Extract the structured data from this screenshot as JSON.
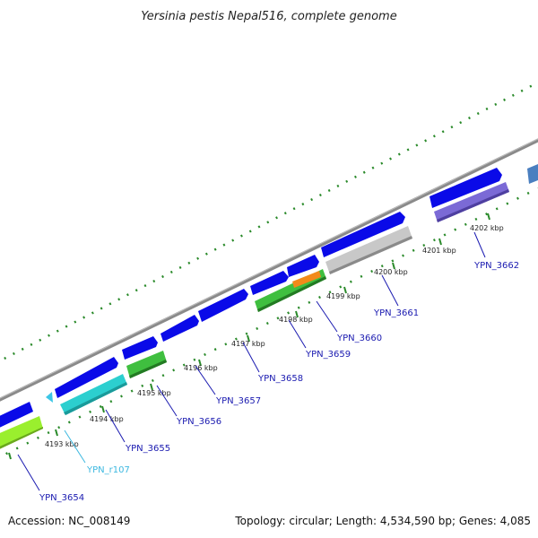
{
  "title": "Yersinia pestis Nepal516, complete genome",
  "footer": {
    "accession": "Accession: NC_008149",
    "topology": "Topology: circular; Length: 4,534,590 bp; Genes: 4,085"
  },
  "ticks": [
    {
      "label": "4193 kbp"
    },
    {
      "label": "4194 kbp"
    },
    {
      "label": "4195 kbp"
    },
    {
      "label": "4196 kbp"
    },
    {
      "label": "4197 kbp"
    },
    {
      "label": "4198 kbp"
    },
    {
      "label": "4199 kbp"
    },
    {
      "label": "4200 kbp"
    },
    {
      "label": "4201 kbp"
    },
    {
      "label": "4202 kbp"
    }
  ],
  "genes": [
    {
      "label": "YPN_3654",
      "color": "#9aef2e"
    },
    {
      "label": "YPN_r107",
      "color": "#3cc6e6"
    },
    {
      "label": "YPN_3655",
      "color": "#2ccfcf"
    },
    {
      "label": "YPN_3656",
      "color": "#3fbf3f"
    },
    {
      "label": "YPN_3657",
      "color": "#0a0ae8"
    },
    {
      "label": "YPN_3658",
      "color": "#0a0ae8"
    },
    {
      "label": "YPN_3659",
      "color": "#3fbf3f"
    },
    {
      "label": "YPN_3660",
      "color": "#f28a1a"
    },
    {
      "label": "YPN_3661",
      "color": "#c8c8c8"
    },
    {
      "label": "YPN_3662",
      "color": "#7b6ad6"
    }
  ],
  "colors": {
    "cds": "#0a0ae8",
    "backbone": "#8a8a8a",
    "tick": "#2a8a2a",
    "label": "#1a1ab0",
    "rna_label": "#3cb8e0"
  }
}
